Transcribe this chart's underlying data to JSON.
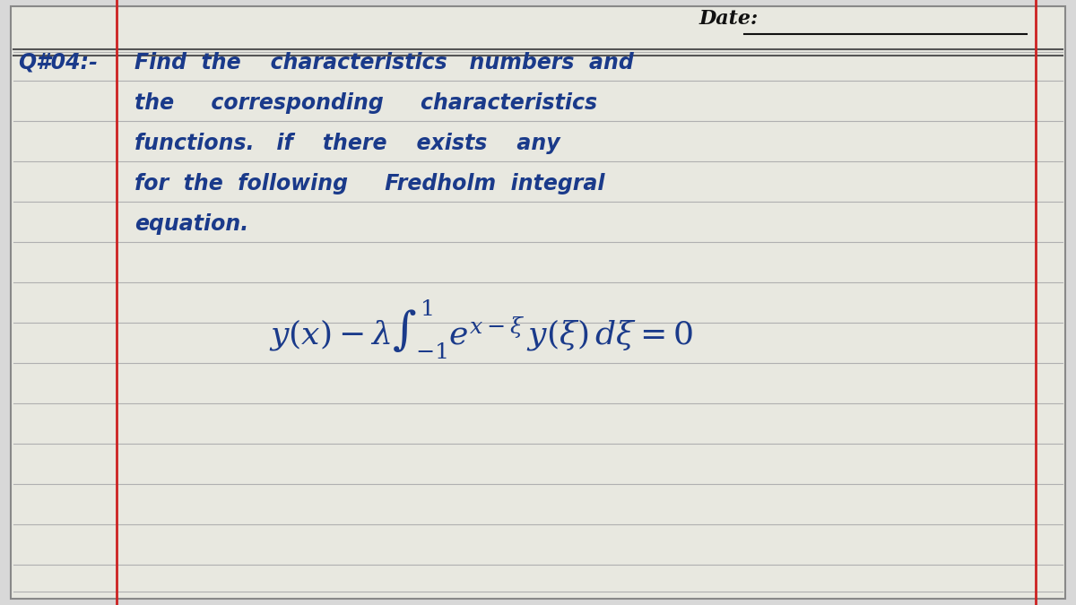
{
  "bg_color": "#d8d8d8",
  "page_color": "#e8e8e0",
  "line_color": "#b0b0b0",
  "red_line_color": "#cc2222",
  "blue_text_color": "#1a3a8a",
  "dark_text_color": "#111111",
  "title_text": "Date:",
  "question_label": "Q#04:-",
  "line1": "Find  the   characteristics  numbers  and",
  "line2": "the    corresponding    characteristics",
  "line3": "functions.  if   there    exists   any",
  "line4": "for  the  following   Fredholm  integral",
  "line5": "equation.",
  "equation": "y(x) - λ\\int_{-1}^{1} e^{x-ξ} y(ξ)\\, dξ = 0",
  "figsize": [
    12,
    6.75
  ],
  "dpi": 100
}
